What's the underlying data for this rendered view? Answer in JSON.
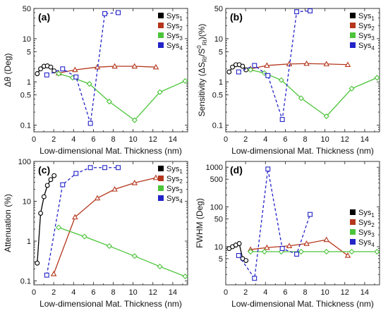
{
  "chart_data": [
    {
      "panel": "(a)",
      "type": "line",
      "xlabel": "Low-dimensional Mat. Thickness (nm)",
      "ylabel": "Δθ (Deg)",
      "x_ticks": [
        "0",
        "2",
        "4",
        "6",
        "8",
        "10",
        "12",
        "14"
      ],
      "y_ticks": [
        "0.1",
        "0.5",
        "1",
        "5",
        "10",
        "50"
      ],
      "xlim": [
        0,
        15.5
      ],
      "ylim": [
        0.07,
        50
      ],
      "yscale": "log",
      "legend": "top-right",
      "series": [
        {
          "name": "Sys1",
          "label_base": "Sys",
          "label_sub": "1",
          "color": "#000000",
          "marker": "circle",
          "dash": false,
          "x": [
            0.34,
            0.68,
            1.02,
            1.36,
            1.7,
            2.04
          ],
          "y": [
            1.55,
            2.0,
            2.3,
            2.35,
            2.2,
            1.8
          ]
        },
        {
          "name": "Sys2",
          "label_base": "Sys",
          "label_sub": "2",
          "color": "#b5361c",
          "marker": "triangle",
          "dash": false,
          "x": [
            2.5,
            4.15,
            6.4,
            8.15,
            10.15,
            12.3
          ],
          "y": [
            1.6,
            1.9,
            2.2,
            2.3,
            2.3,
            2.2
          ]
        },
        {
          "name": "Sys3",
          "label_base": "Sys",
          "label_sub": "3",
          "color": "#4cc43a",
          "marker": "diamond",
          "dash": false,
          "x": [
            2.5,
            3.9,
            5.6,
            7.6,
            10.15,
            12.7,
            15.25
          ],
          "y": [
            1.55,
            1.25,
            0.9,
            0.35,
            0.13,
            0.58,
            1.05
          ]
        },
        {
          "name": "Sys4",
          "label_base": "Sys",
          "label_sub": "4",
          "color": "#2323c8",
          "marker": "square",
          "dash": true,
          "x": [
            1.3,
            2.9,
            4.25,
            5.7,
            7.15,
            8.5
          ],
          "y": [
            1.45,
            2.0,
            1.3,
            0.11,
            38,
            40
          ]
        }
      ]
    },
    {
      "panel": "(b)",
      "type": "line",
      "xlabel": "Low-dimensional Mat. Thickness (nm)",
      "ylabel": "Sensitivity (ΔS_RI/S_RI^0)(%)",
      "ylabel_parts": {
        "a": "Sensitivity (ΔS",
        "sub1": "RI",
        "b": "/S",
        "sup": "0",
        "sub2": "RI",
        "c": ")(%)"
      },
      "x_ticks": [
        "0",
        "2",
        "4",
        "6",
        "8",
        "10",
        "12",
        "14"
      ],
      "y_ticks": [
        "0.1",
        "0.5",
        "1",
        "5",
        "10",
        "50"
      ],
      "xlim": [
        0,
        15.5
      ],
      "ylim": [
        0.07,
        50
      ],
      "yscale": "log",
      "legend": "top-right",
      "series": [
        {
          "name": "Sys1",
          "label_base": "Sys",
          "label_sub": "1",
          "color": "#000000",
          "marker": "circle",
          "dash": false,
          "x": [
            0.34,
            0.68,
            1.02,
            1.36,
            1.7,
            2.04
          ],
          "y": [
            1.7,
            2.2,
            2.5,
            2.5,
            2.3,
            1.9
          ]
        },
        {
          "name": "Sys2",
          "label_base": "Sys",
          "label_sub": "2",
          "color": "#b5361c",
          "marker": "triangle",
          "dash": false,
          "x": [
            2.5,
            4.15,
            6.4,
            8.15,
            10.15,
            12.3
          ],
          "y": [
            2.0,
            2.4,
            2.6,
            2.65,
            2.6,
            2.5
          ]
        },
        {
          "name": "Sys3",
          "label_base": "Sys",
          "label_sub": "3",
          "color": "#4cc43a",
          "marker": "diamond",
          "dash": false,
          "x": [
            2.5,
            3.9,
            5.6,
            7.6,
            10.15,
            12.7,
            15.25
          ],
          "y": [
            1.9,
            1.6,
            1.1,
            0.42,
            0.16,
            0.7,
            1.25
          ]
        },
        {
          "name": "Sys4",
          "label_base": "Sys",
          "label_sub": "4",
          "color": "#2323c8",
          "marker": "square",
          "dash": true,
          "x": [
            1.3,
            2.9,
            4.25,
            5.7,
            7.15,
            8.5
          ],
          "y": [
            1.7,
            2.4,
            1.4,
            0.135,
            42,
            44
          ]
        }
      ]
    },
    {
      "panel": "(c)",
      "type": "line",
      "xlabel": "Low-dimensional Mat. Thickness (nm)",
      "ylabel": "Attenuation (%)",
      "x_ticks": [
        "0",
        "2",
        "4",
        "6",
        "8",
        "10",
        "12",
        "14"
      ],
      "y_ticks": [
        "0.1",
        "1",
        "10",
        "100"
      ],
      "xlim": [
        0,
        15.5
      ],
      "ylim": [
        0.08,
        100
      ],
      "yscale": "log",
      "legend": "top-right",
      "series": [
        {
          "name": "Sys1",
          "label_base": "Sys",
          "label_sub": "1",
          "color": "#000000",
          "marker": "circle",
          "dash": false,
          "x": [
            0.34,
            0.68,
            1.02,
            1.36,
            1.7,
            2.04
          ],
          "y": [
            0.28,
            5.0,
            13,
            25,
            35,
            44
          ]
        },
        {
          "name": "Sys2",
          "label_base": "Sys",
          "label_sub": "2",
          "color": "#b5361c",
          "marker": "triangle",
          "dash": false,
          "x": [
            2.0,
            4.15,
            6.4,
            8.15,
            10.15,
            12.3
          ],
          "y": [
            0.15,
            4.0,
            12,
            20,
            29,
            39
          ]
        },
        {
          "name": "Sys3",
          "label_base": "Sys",
          "label_sub": "3",
          "color": "#4cc43a",
          "marker": "diamond",
          "dash": false,
          "x": [
            2.5,
            5.1,
            7.6,
            10.15,
            12.7,
            15.25
          ],
          "y": [
            2.2,
            1.3,
            0.75,
            0.42,
            0.23,
            0.13
          ]
        },
        {
          "name": "Sys4",
          "label_base": "Sys",
          "label_sub": "4",
          "color": "#2323c8",
          "marker": "square",
          "dash": true,
          "x": [
            1.3,
            2.9,
            4.25,
            5.7,
            7.15,
            8.5
          ],
          "y": [
            0.14,
            26,
            50,
            70,
            70,
            70
          ]
        }
      ]
    },
    {
      "panel": "(d)",
      "type": "line",
      "xlabel": "Low-dimensional Mat. Thickness (nm)",
      "ylabel": "FWHM (Deg)",
      "x_ticks": [
        "0",
        "2",
        "4",
        "6",
        "8",
        "10",
        "12",
        "14"
      ],
      "y_ticks": [
        "5",
        "10",
        "50",
        "100",
        "500",
        "1000"
      ],
      "xlim": [
        0,
        15.5
      ],
      "ylim": [
        1.1,
        1400
      ],
      "yscale": "log",
      "legend": "right",
      "series": [
        {
          "name": "Sys1",
          "label_base": "Sys",
          "label_sub": "1",
          "color": "#000000",
          "marker": "circle",
          "dash": false,
          "x": [
            0.34,
            0.68,
            1.02,
            1.36,
            1.7,
            2.04
          ],
          "y": [
            9.0,
            10,
            11,
            12,
            5.0,
            4.5
          ]
        },
        {
          "name": "Sys2",
          "label_base": "Sys",
          "label_sub": "2",
          "color": "#b5361c",
          "marker": "triangle",
          "dash": false,
          "x": [
            2.5,
            4.15,
            6.4,
            8.15,
            10.15,
            12.3
          ],
          "y": [
            8.5,
            9.5,
            10.5,
            12,
            15,
            6.0
          ]
        },
        {
          "name": "Sys3",
          "label_base": "Sys",
          "label_sub": "3",
          "color": "#4cc43a",
          "marker": "diamond",
          "dash": false,
          "x": [
            2.5,
            3.9,
            5.6,
            7.6,
            10.15,
            12.7,
            15.25
          ],
          "y": [
            7.5,
            7.5,
            7.5,
            7.5,
            7.5,
            7.5,
            7.5
          ]
        },
        {
          "name": "Sys4",
          "label_base": "Sys",
          "label_sub": "4",
          "color": "#2323c8",
          "marker": "square",
          "dash": true,
          "x": [
            1.3,
            2.9,
            4.25,
            5.7,
            7.15,
            8.5
          ],
          "y": [
            6.0,
            1.6,
            900,
            9.0,
            6.5,
            65
          ]
        }
      ]
    }
  ]
}
